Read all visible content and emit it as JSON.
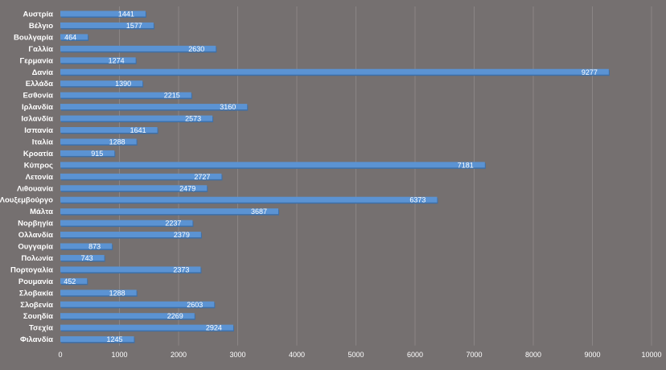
{
  "chart_data": {
    "type": "bar",
    "orientation": "horizontal",
    "categories": [
      "Αυστρία",
      "Βέλγιο",
      "Βουλγαρία",
      "Γαλλία",
      "Γερμανία",
      "Δανία",
      "Ελλάδα",
      "Εσθονία",
      "Ιρλανδία",
      "Ισλανδία",
      "Ισπανία",
      "Ιταλία",
      "Κροατία",
      "Κύπρος",
      "Λετονία",
      "Λιθουανία",
      "Λουξεμβούργο",
      "Μάλτα",
      "Νορβηγία",
      "Ολλανδία",
      "Ουγγαρία",
      "Πολωνία",
      "Πορτογαλία",
      "Ρουμανία",
      "Σλοβακία",
      "Σλοβενία",
      "Σουηδία",
      "Τσεχία",
      "Φιλανδία"
    ],
    "values": [
      1441,
      1577,
      464,
      2630,
      1274,
      9277,
      1390,
      2215,
      3160,
      2573,
      1641,
      1288,
      915,
      7181,
      2727,
      2479,
      6373,
      3687,
      2237,
      2379,
      873,
      743,
      2373,
      452,
      1288,
      2603,
      2269,
      2924,
      1245
    ],
    "xlim": [
      0,
      10000
    ],
    "xticks": [
      "0",
      "1000",
      "2000",
      "3000",
      "4000",
      "5000",
      "6000",
      "7000",
      "8000",
      "9000",
      "10000"
    ],
    "title": "",
    "xlabel": "",
    "ylabel": "",
    "grid": "vertical",
    "legend": "none",
    "colors": {
      "bar": "#5b93d3",
      "bar_shadow": "#3d6fa8",
      "background": "#757070",
      "text": "#ffffff"
    }
  }
}
